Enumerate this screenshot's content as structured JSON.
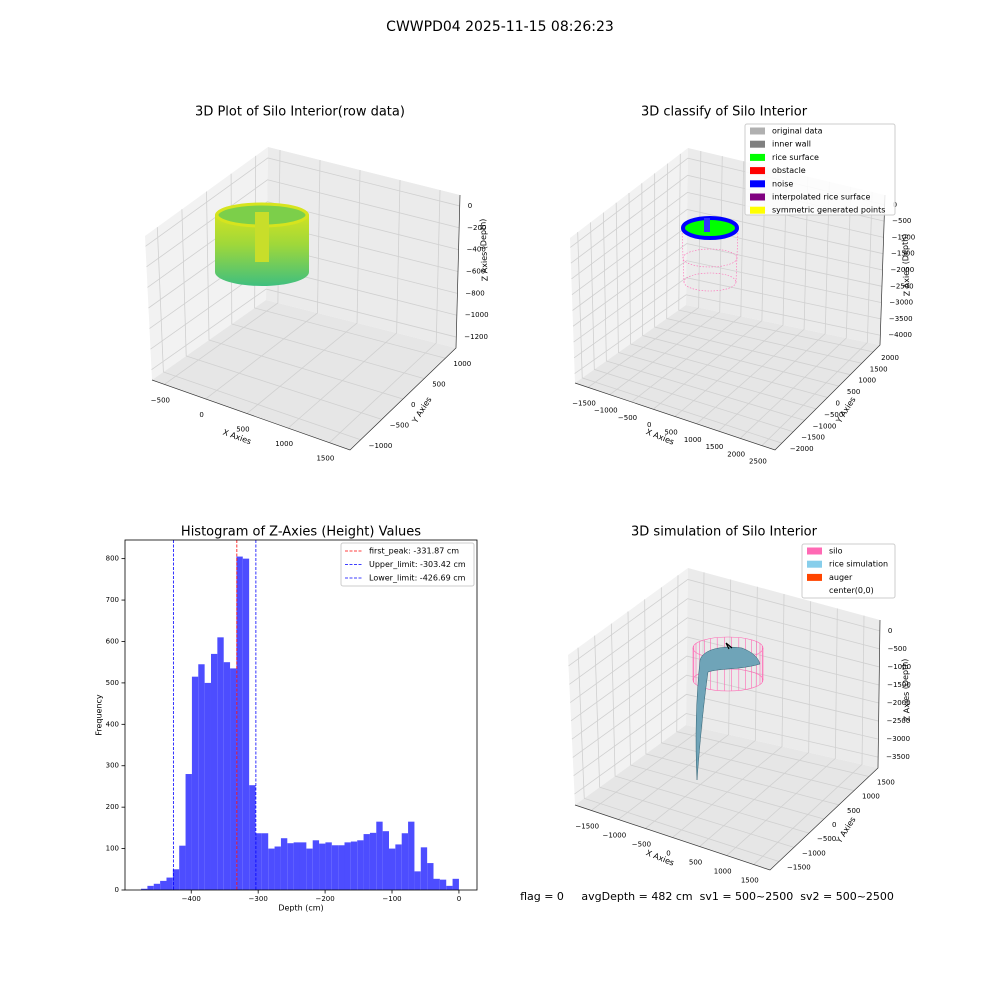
{
  "title": "CWWPD04 2025-11-15 08:26:23",
  "chart_data": [
    {
      "type": "scatter3d",
      "title": "3D Plot of Silo Interior(row data)",
      "xlabel": "X Axies",
      "ylabel": "Y Axies",
      "zlabel": "Z Axies (Depth)",
      "xlim": [
        -650,
        1750
      ],
      "xticks": [
        {
          "value": -500,
          "label": "−500"
        },
        0,
        500,
        1000,
        1500
      ],
      "ylim": [
        -1250,
        1250
      ],
      "yticks": [
        {
          "value": -1000,
          "label": "−1000"
        },
        {
          "value": -500,
          "label": "−500"
        },
        0,
        500,
        1000
      ],
      "zlim": [
        -1300,
        100
      ],
      "zticks": [
        0,
        {
          "value": -200,
          "label": "−200"
        },
        {
          "value": -400,
          "label": "−400"
        },
        {
          "value": -600,
          "label": "−600"
        },
        {
          "value": -800,
          "label": "−800"
        },
        {
          "value": -1000,
          "label": "−1000"
        },
        {
          "value": -1200,
          "label": "−1200"
        }
      ]
    },
    {
      "type": "scatter3d",
      "title": "3D classify of Silo Interior",
      "xlabel": "X Axies",
      "ylabel": "Y Axies",
      "zlabel": "Z Axies (Depth)",
      "xlim": [
        -1800,
        2800
      ],
      "xticks": [
        {
          "value": -1500,
          "label": "−1500"
        },
        {
          "value": -1000,
          "label": "−1000"
        },
        {
          "value": -500,
          "label": "−500"
        },
        0,
        500,
        1000,
        1500,
        2000,
        2500
      ],
      "ylim": [
        -2300,
        2300
      ],
      "yticks": [
        {
          "value": -2000,
          "label": "−2000"
        },
        {
          "value": -1500,
          "label": "−1500"
        },
        {
          "value": -1000,
          "label": "−1000"
        },
        {
          "value": -500,
          "label": "−500"
        },
        0,
        500,
        1000,
        1500,
        2000
      ],
      "zlim": [
        -4300,
        300
      ],
      "zticks": [
        0,
        {
          "value": -500,
          "label": "−500"
        },
        {
          "value": -1000,
          "label": "−1000"
        },
        {
          "value": -1500,
          "label": "−1500"
        },
        {
          "value": -2000,
          "label": "−2000"
        },
        {
          "value": -2500,
          "label": "−2500"
        },
        {
          "value": -3000,
          "label": "−3000"
        },
        {
          "value": -3500,
          "label": "−3500"
        },
        {
          "value": -4000,
          "label": "−4000"
        }
      ],
      "legend": [
        {
          "name": "original data",
          "color": "#b0b0b0"
        },
        {
          "name": "inner wall",
          "color": "#808080"
        },
        {
          "name": "rice surface",
          "color": "#00ff00"
        },
        {
          "name": "obstacle",
          "color": "#ff0000"
        },
        {
          "name": "noise",
          "color": "#0000ff"
        },
        {
          "name": "interpolated rice surface",
          "color": "#800080"
        },
        {
          "name": "symmetric generated points",
          "color": "#ffff00"
        }
      ]
    },
    {
      "type": "histogram",
      "title": "Histogram of Z-Axies (Height) Values",
      "xlabel": "Depth (cm)",
      "ylabel": "Frequency",
      "color": "#4d4dff",
      "bins": [
        -475,
        -465.5,
        -456,
        -446.5,
        -437,
        -427.5,
        -418,
        -408.5,
        -399,
        -389.5,
        -380,
        -370.5,
        -361,
        -351.5,
        -342,
        -332.5,
        -323,
        -313.5,
        -304,
        -294.5,
        -285,
        -275.5,
        -266,
        -256.5,
        -247,
        -237.5,
        -228,
        -218.5,
        -209,
        -199.5,
        -190,
        -180.5,
        -171,
        -161.5,
        -152,
        -142.5,
        -133,
        -123.5,
        -114,
        -104.5,
        -95,
        -85.5,
        -76,
        -66.5,
        -57,
        -47.5,
        -38,
        -28.5,
        -19,
        -9.5,
        0
      ],
      "values": [
        3,
        10,
        15,
        22,
        30,
        50,
        107,
        280,
        515,
        545,
        500,
        570,
        610,
        550,
        535,
        805,
        800,
        253,
        137,
        137,
        100,
        105,
        125,
        113,
        115,
        115,
        100,
        120,
        112,
        115,
        108,
        108,
        115,
        117,
        120,
        135,
        138,
        165,
        142,
        100,
        110,
        137,
        165,
        45,
        103,
        65,
        27,
        25,
        10,
        27
      ],
      "xlim": [
        -499,
        27
      ],
      "xticks": [
        {
          "value": -400,
          "label": "−400"
        },
        {
          "value": -300,
          "label": "−300"
        },
        {
          "value": -200,
          "label": "−200"
        },
        {
          "value": -100,
          "label": "−100"
        },
        0
      ],
      "ylim": [
        0,
        845
      ],
      "yticks": [
        0,
        100,
        200,
        300,
        400,
        500,
        600,
        700,
        800
      ],
      "lines": [
        {
          "label": "first_peak: -331.87 cm",
          "value": -331.87,
          "color": "#ff0000"
        },
        {
          "label": "Upper_limit: -303.42 cm",
          "value": -303.42,
          "color": "#0000ff"
        },
        {
          "label": "Lower_limit: -426.69 cm",
          "value": -426.69,
          "color": "#0000ff"
        }
      ]
    },
    {
      "type": "surface3d",
      "title": "3D simulation of Silo Interior",
      "xlabel": "X Axies",
      "ylabel": "Y Axies",
      "zlabel": "Z Axies (Depth)",
      "xlim": [
        -1800,
        1800
      ],
      "xticks": [
        {
          "value": -1500,
          "label": "−1500"
        },
        {
          "value": -1000,
          "label": "−1000"
        },
        {
          "value": -500,
          "label": "−500"
        },
        0,
        500,
        1000,
        1500
      ],
      "ylim": [
        -1800,
        1800
      ],
      "yticks": [
        {
          "value": -1500,
          "label": "−1500"
        },
        {
          "value": -1000,
          "label": "−1000"
        },
        {
          "value": -500,
          "label": "−500"
        },
        0,
        500,
        1000,
        1500
      ],
      "zlim": [
        -3800,
        300
      ],
      "zticks": [
        0,
        {
          "value": -500,
          "label": "−500"
        },
        {
          "value": -1000,
          "label": "−1000"
        },
        {
          "value": -1500,
          "label": "−1500"
        },
        {
          "value": -2000,
          "label": "−2000"
        },
        {
          "value": -2500,
          "label": "−2500"
        },
        {
          "value": -3000,
          "label": "−3000"
        },
        {
          "value": -3500,
          "label": "−3500"
        }
      ],
      "legend": [
        {
          "name": "silo",
          "color": "#ff69b4"
        },
        {
          "name": "rice simulation",
          "color": "#87ceeb"
        },
        {
          "name": "auger",
          "color": "#ff4500"
        },
        {
          "name": "center(0,0)",
          "color": "#ffffff"
        }
      ]
    }
  ],
  "footer": "flag = 0     avgDepth = 482 cm  sv1 = 500~2500  sv2 = 500~2500"
}
